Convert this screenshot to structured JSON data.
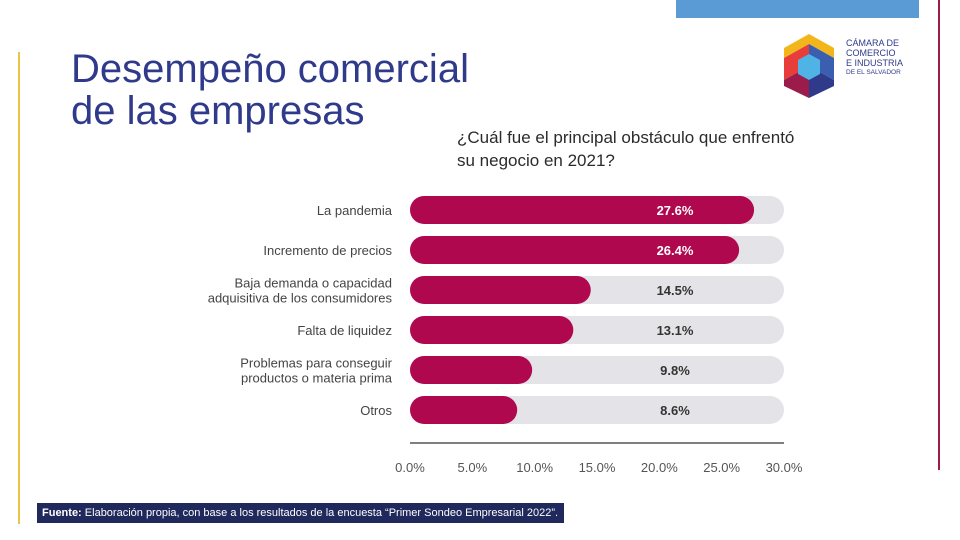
{
  "title": {
    "line1": "Desempeño comercial",
    "line2": "de las empresas"
  },
  "logo": {
    "line1": "CÁMARA DE",
    "line2": "COMERCIO",
    "line3": "E INDUSTRIA",
    "line4": "DE EL SALVADOR"
  },
  "colors": {
    "bar": "#b0084f",
    "track": "#e4e4e8",
    "axis": "#555555",
    "navy": "#20295c"
  },
  "chart_data": {
    "type": "bar",
    "orientation": "horizontal",
    "title": "¿Cuál fue el principal obstáculo que enfrentó su negocio en 2021?",
    "categories": [
      [
        "La pandemia"
      ],
      [
        "Incremento de precios"
      ],
      [
        "Baja demanda o capacidad",
        "adquisitiva de los consumidores"
      ],
      [
        "Falta de liquidez"
      ],
      [
        "Problemas para conseguir",
        "productos o materia prima"
      ],
      [
        "Otros"
      ]
    ],
    "values": [
      27.6,
      26.4,
      14.5,
      13.1,
      9.8,
      8.6
    ],
    "value_labels": [
      "27.6%",
      "26.4%",
      "14.5%",
      "13.1%",
      "9.8%",
      "8.6%"
    ],
    "xlim": [
      0,
      30
    ],
    "xticks": [
      "0.0%",
      "5.0%",
      "10.0%",
      "15.0%",
      "20.0%",
      "25.0%",
      "30.0%"
    ],
    "grid": false,
    "legend": "none"
  },
  "source": {
    "label": "Fuente:",
    "text": " Elaboración propia, con base a los resultados de la encuesta “Primer Sondeo Empresarial 2022”."
  }
}
